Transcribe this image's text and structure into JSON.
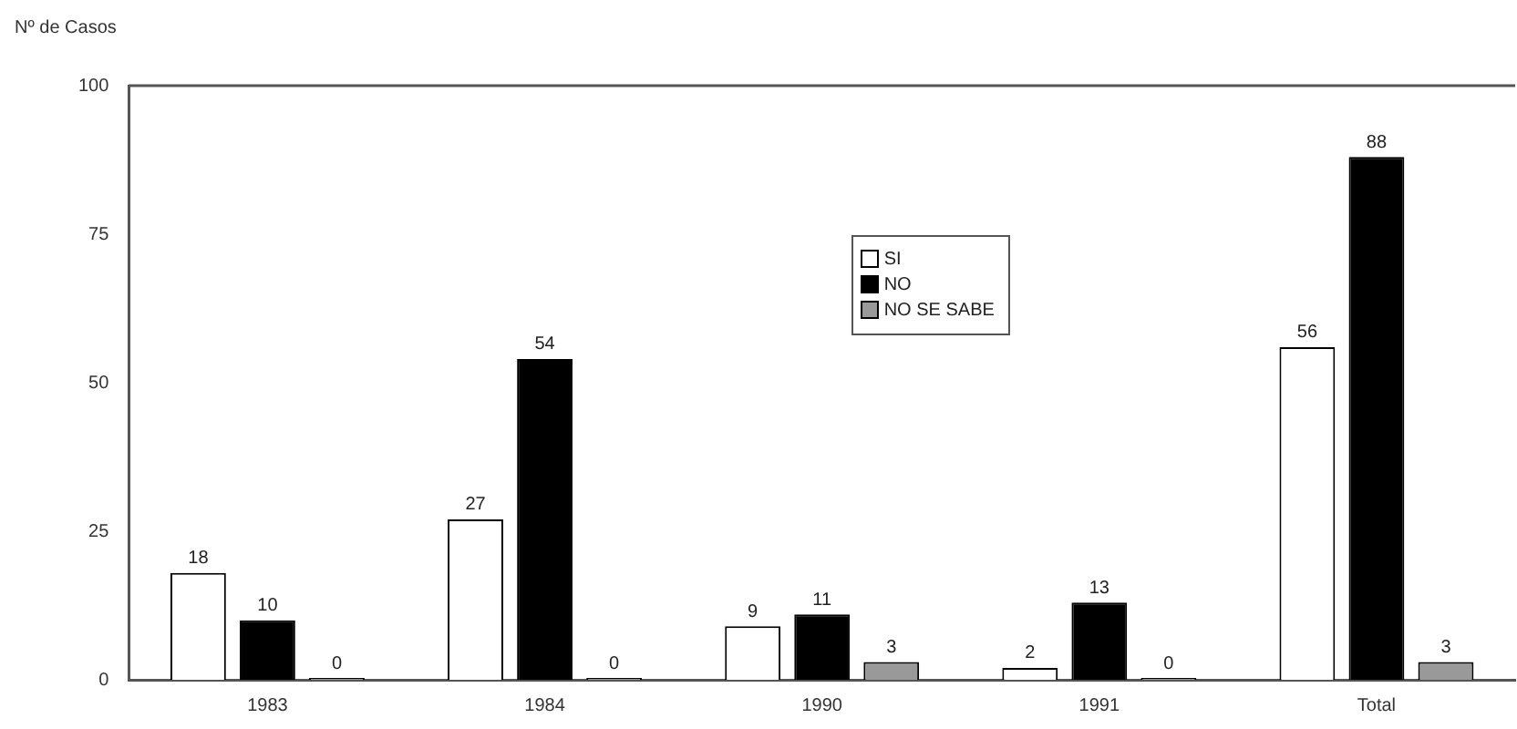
{
  "chart_data": {
    "type": "bar",
    "ylabel": "Nº de Casos",
    "categories": [
      "1983",
      "1984",
      "1990",
      "1991",
      "Total"
    ],
    "series": [
      {
        "name": "SI",
        "color": "#ffffff",
        "values": [
          18,
          27,
          9,
          2,
          56
        ]
      },
      {
        "name": "NO",
        "color": "#000000",
        "values": [
          10,
          54,
          11,
          13,
          88
        ]
      },
      {
        "name": "NO SE SABE",
        "color": "#999999",
        "values": [
          0,
          0,
          3,
          0,
          3
        ]
      }
    ],
    "ylim": [
      0,
      100
    ],
    "yticks": [
      0,
      25,
      50,
      75,
      100
    ],
    "grid": false,
    "legend": "top",
    "data_labels": true
  }
}
